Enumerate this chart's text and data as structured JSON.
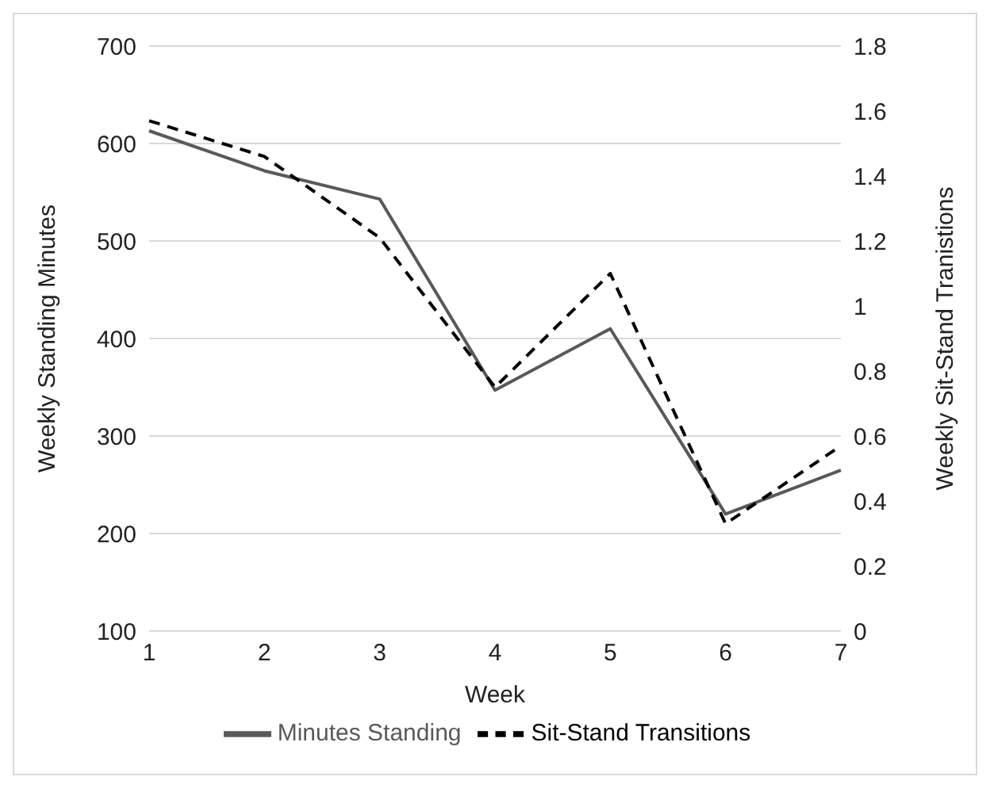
{
  "chart_data": {
    "type": "line",
    "xlabel": "Week",
    "ylabel": "Weekly Standing Minutes",
    "y2label": "Weekly Sit-Stand Tranistions",
    "categories": [
      "1",
      "2",
      "3",
      "4",
      "5",
      "6",
      "7"
    ],
    "series": [
      {
        "name": "Minutes Standing",
        "color": "#595959",
        "line_style": "solid",
        "values": [
          613,
          572,
          543,
          347,
          410,
          220,
          265
        ]
      },
      {
        "name": "Sit-Stand Transitions",
        "color": "#000000",
        "line_style": "dashed",
        "axis": "y2",
        "values": [
          1.57,
          1.46,
          1.21,
          0.75,
          1.1,
          0.33,
          0.57
        ]
      }
    ],
    "ylim": [
      100,
      700
    ],
    "yticks": [
      100,
      200,
      300,
      400,
      500,
      600,
      700
    ],
    "y2lim": [
      0,
      1.8
    ],
    "y2ticks": [
      0,
      0.2,
      0.4,
      0.6,
      0.8,
      1,
      1.2,
      1.4,
      1.6,
      1.8
    ],
    "grid": "y",
    "legend": "bottom",
    "marker": "none"
  }
}
